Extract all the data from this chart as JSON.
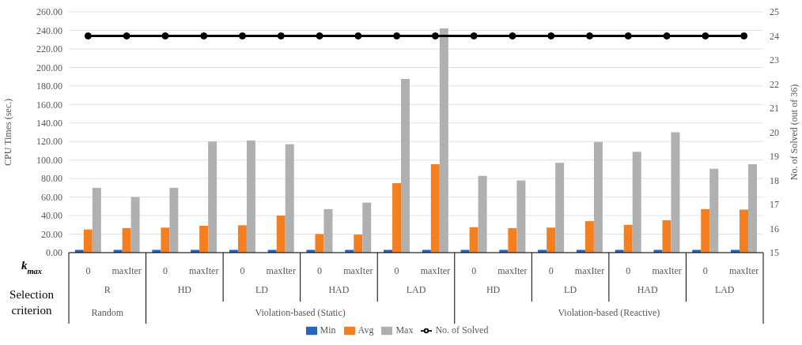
{
  "chart_data": {
    "type": "bar",
    "categories": [
      "0",
      "maxIter",
      "0",
      "maxIter",
      "0",
      "maxIter",
      "0",
      "maxIter",
      "0",
      "maxIter",
      "0",
      "maxIter",
      "0",
      "maxIter",
      "0",
      "maxIter",
      "0",
      "maxIter"
    ],
    "series": [
      {
        "name": "Min",
        "color": "#2466c0",
        "values": [
          3,
          3,
          3,
          3,
          3,
          3,
          3,
          3,
          3,
          3,
          3,
          3,
          3,
          3,
          3,
          3,
          3,
          3
        ]
      },
      {
        "name": "Avg",
        "color": "#f47f20",
        "values": [
          25,
          26.5,
          27,
          29,
          29.5,
          40,
          20,
          19.5,
          75,
          95.5,
          27.5,
          26.5,
          27,
          34,
          30,
          35,
          47,
          46.5
        ]
      },
      {
        "name": "Max",
        "color": "#b0b0b0",
        "values": [
          70,
          60,
          70,
          120,
          121,
          117,
          47,
          54,
          187.5,
          242,
          83,
          78,
          97,
          119.5,
          109,
          130,
          90.5,
          95.5
        ]
      },
      {
        "name": "No. of Solved",
        "type": "line",
        "axis": "y2",
        "color": "#000000",
        "values": [
          24,
          24,
          24,
          24,
          24,
          24,
          24,
          24,
          24,
          24,
          24,
          24,
          24,
          24,
          24,
          24,
          24,
          24
        ]
      }
    ],
    "ylabel": "CPU Times (sec.)",
    "y2label": "No. of Solved (out of 36)",
    "ylim": [
      0,
      260
    ],
    "yticks": [
      {
        "value": 0,
        "label": "0.00"
      },
      {
        "value": 20,
        "label": "20.00"
      },
      {
        "value": 40,
        "label": "40.00"
      },
      {
        "value": 60,
        "label": "60.00"
      },
      {
        "value": 80,
        "label": "80.00"
      },
      {
        "value": 100,
        "label": "100.00"
      },
      {
        "value": 120,
        "label": "120.00"
      },
      {
        "value": 140,
        "label": "140.00"
      },
      {
        "value": 160,
        "label": "160.00"
      },
      {
        "value": 180,
        "label": "180.00"
      },
      {
        "value": 200,
        "label": "200.00"
      },
      {
        "value": 220,
        "label": "220.00"
      },
      {
        "value": 240,
        "label": "240.00"
      },
      {
        "value": 260,
        "label": "260.00"
      }
    ],
    "y2lim": [
      15,
      25
    ],
    "y2ticks": [
      15,
      16,
      17,
      18,
      19,
      20,
      21,
      22,
      23,
      24,
      25
    ],
    "annotations": [
      "k$_{max}$",
      "Selection criterion",
      "R",
      "HD",
      "LD",
      "HAD",
      "LAD",
      "HD",
      "LD",
      "HAD",
      "LAD",
      "Random",
      "Violation-based (Static)",
      "Violation-based (Reactive)"
    ],
    "grid": "y",
    "legend": "bottom",
    "marker": "circle",
    "line_style": "solid"
  }
}
